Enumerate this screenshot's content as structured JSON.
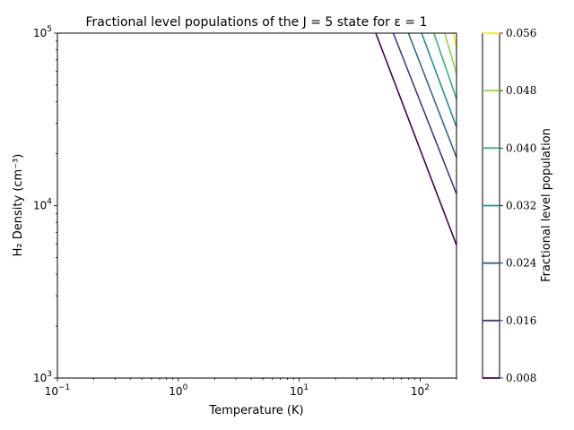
{
  "chart_data": {
    "type": "contour",
    "title": "Fractional level populations of the J = 5 state for ε = 1",
    "xlabel": "Temperature (K)",
    "ylabel": "H₂ Density (cm⁻³)",
    "x_scale": "log",
    "y_scale": "log",
    "xlim": [
      0.1,
      200
    ],
    "ylim": [
      1000,
      100000
    ],
    "x_ticks": [
      {
        "value": 0.1,
        "base": "10",
        "exp": "−1"
      },
      {
        "value": 1,
        "base": "10",
        "exp": "0"
      },
      {
        "value": 10,
        "base": "10",
        "exp": "1"
      },
      {
        "value": 100,
        "base": "10",
        "exp": "2"
      }
    ],
    "y_ticks": [
      {
        "value": 1000,
        "base": "10",
        "exp": "3"
      },
      {
        "value": 10000,
        "base": "10",
        "exp": "4"
      },
      {
        "value": 100000,
        "base": "10",
        "exp": "5"
      }
    ],
    "grid": false,
    "colorbar": {
      "label": "Fractional level population",
      "range": [
        0.008,
        0.056
      ],
      "ticks": [
        "0.008",
        "0.016",
        "0.024",
        "0.032",
        "0.040",
        "0.048",
        "0.056"
      ]
    },
    "contours": [
      {
        "level": 0.008,
        "color": "#440154",
        "points": [
          [
            43,
            100000
          ],
          [
            200,
            5900
          ]
        ]
      },
      {
        "level": 0.016,
        "color": "#443983",
        "points": [
          [
            60,
            100000
          ],
          [
            200,
            11700
          ]
        ]
      },
      {
        "level": 0.024,
        "color": "#31688e",
        "points": [
          [
            80,
            100000
          ],
          [
            200,
            19000
          ]
        ]
      },
      {
        "level": 0.032,
        "color": "#21918c",
        "points": [
          [
            103,
            100000
          ],
          [
            200,
            28500
          ]
        ]
      },
      {
        "level": 0.04,
        "color": "#35b779",
        "points": [
          [
            130,
            100000
          ],
          [
            200,
            41500
          ]
        ]
      },
      {
        "level": 0.048,
        "color": "#90d743",
        "points": [
          [
            160,
            100000
          ],
          [
            200,
            58000
          ]
        ]
      },
      {
        "level": 0.056,
        "color": "#fde725",
        "points": [
          [
            187,
            100000
          ],
          [
            200,
            82000
          ]
        ]
      }
    ]
  }
}
